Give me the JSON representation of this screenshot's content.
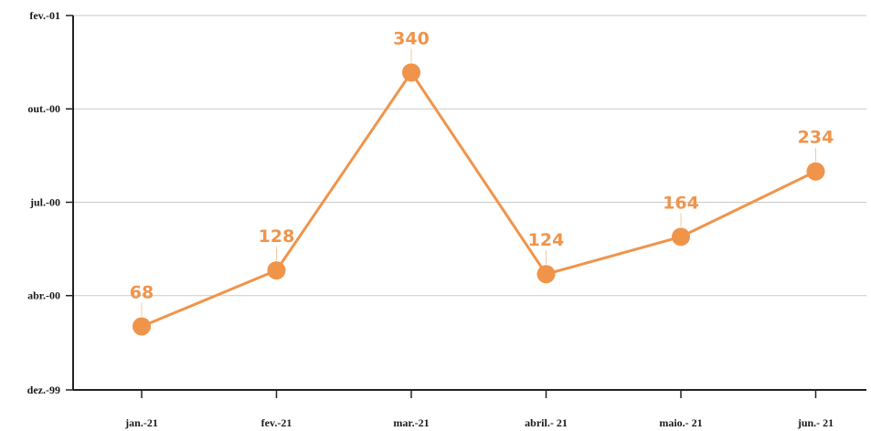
{
  "chart_data": {
    "type": "line",
    "title": "",
    "xlabel": "",
    "ylabel": "",
    "categories": [
      "jan.-21",
      "fev.-21",
      "mar.-21",
      "abril.- 21",
      "maio.- 21",
      "jun.- 21"
    ],
    "series": [
      {
        "values": [
          68,
          128,
          340,
          124,
          164,
          234
        ],
        "color": "#f0944a"
      }
    ],
    "data_labels": [
      "68",
      "128",
      "340",
      "124",
      "164",
      "234"
    ],
    "y_tick_labels": [
      "dez.-99",
      "abr.-00",
      "jul.-00",
      "out.-00",
      "fev.-01"
    ],
    "y_tick_values": [
      0,
      101,
      201,
      301,
      401
    ],
    "ylim": [
      0,
      401
    ],
    "grid": true,
    "legend": "none",
    "colors": {
      "line": "#f0944a",
      "marker": "#f0944a",
      "label": "#f0944a",
      "grid": "#c9c9c9",
      "axis": "#222222"
    }
  }
}
